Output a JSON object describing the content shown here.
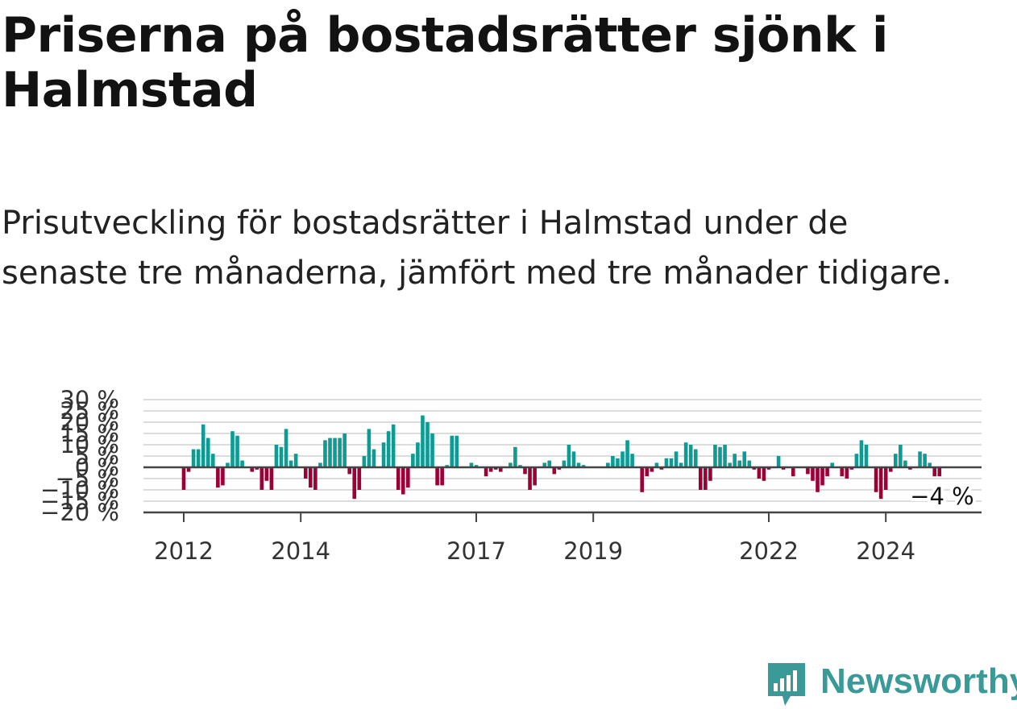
{
  "title": "Priserna på bostadsrätter sjönk i Halmstad",
  "subtitle": "Prisutveckling för bostadsrätter i Halmstad under de senaste tre månaderna, jämfört med tre månader tidigare.",
  "brand": "Newsworthy",
  "colors": {
    "positive": "#0d9b93",
    "negative": "#9b0037",
    "grid": "#dcdcdc",
    "axis": "#444444",
    "brand": "#3a9a97"
  },
  "chart_data": {
    "type": "bar",
    "ylim": [
      -20,
      30
    ],
    "y_ticks": [
      30,
      25,
      20,
      15,
      10,
      5,
      0,
      -5,
      -10,
      -15,
      -20
    ],
    "y_tick_labels": [
      "30 %",
      "25 %",
      "20 %",
      "15 %",
      "10 %",
      "5 %",
      "0 %",
      "−5 %",
      "−10 %",
      "−15 %",
      "−20 %"
    ],
    "x_ticks": [
      {
        "label": "2012",
        "month_index": 0
      },
      {
        "label": "2014",
        "month_index": 24
      },
      {
        "label": "2017",
        "month_index": 60
      },
      {
        "label": "2019",
        "month_index": 84
      },
      {
        "label": "2022",
        "month_index": 120
      },
      {
        "label": "2024",
        "month_index": 144
      }
    ],
    "last_value_label": "−4 %",
    "values": [
      -10,
      -2,
      8,
      8,
      19,
      13,
      6,
      -9,
      -8,
      2,
      16,
      14,
      3,
      0,
      -2,
      -1,
      -10,
      -6,
      -10,
      10,
      9,
      17,
      3,
      6,
      0,
      -5,
      -9,
      -10,
      2,
      12,
      13,
      13,
      13,
      15,
      -3,
      -14,
      -10,
      5,
      17,
      8,
      0,
      11,
      16,
      19,
      -10,
      -12,
      -9,
      6,
      11,
      23,
      20,
      15,
      -8,
      -8,
      1,
      14,
      14,
      0,
      0,
      2,
      1,
      0,
      -4,
      -2,
      -1,
      -2,
      0,
      2,
      9,
      1,
      -3,
      -10,
      -8,
      0,
      2,
      3,
      -3,
      -1,
      3,
      10,
      7,
      2,
      1,
      0,
      0,
      0,
      0,
      2,
      5,
      4,
      7,
      12,
      6,
      0,
      -11,
      -4,
      -2,
      2,
      -1,
      4,
      4,
      7,
      2,
      11,
      10,
      8,
      -10,
      -10,
      -6,
      10,
      9,
      10,
      2,
      6,
      3,
      7,
      3,
      -1,
      -5,
      -6,
      -1,
      0,
      5,
      -1,
      0,
      -4,
      0,
      0,
      -3,
      -6,
      -11,
      -8,
      -4,
      2,
      0,
      -4,
      -5,
      -1,
      6,
      12,
      10,
      0,
      -11,
      -14,
      -10,
      -2,
      6,
      10,
      3,
      -1,
      0,
      7,
      6,
      2,
      -4,
      -4
    ]
  }
}
